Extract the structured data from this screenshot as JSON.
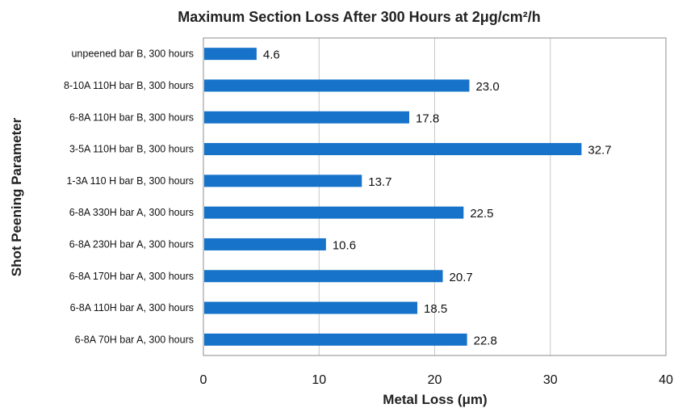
{
  "chart_data": {
    "type": "bar",
    "orientation": "horizontal",
    "title": "Maximum Section Loss After 300 Hours at 2μg/cm²/h",
    "xlabel": "Metal Loss (μm)",
    "ylabel": "Shot Peening Parameter",
    "categories": [
      "unpeened bar B, 300 hours",
      "8-10A 110H bar B, 300 hours",
      "6-8A 110H bar B, 300 hours",
      "3-5A 110H bar B, 300 hours",
      "1-3A 110 H bar B, 300 hours",
      "6-8A 330H bar A, 300 hours",
      "6-8A 230H bar A, 300 hours",
      "6-8A 170H bar A,  300 hours",
      "6-8A 110H bar A, 300 hours",
      "6-8A 70H bar A, 300 hours"
    ],
    "values": [
      4.6,
      23.0,
      17.8,
      32.7,
      13.7,
      22.5,
      10.6,
      20.7,
      18.5,
      22.8
    ],
    "value_labels": [
      "4.6",
      "23.0",
      "17.8",
      "32.7",
      "13.7",
      "22.5",
      "10.6",
      "20.7",
      "18.5",
      "22.8"
    ],
    "xlim": [
      0,
      40
    ],
    "xticks": [
      0,
      10,
      20,
      30,
      40
    ],
    "grid": "vertical",
    "bar_color": "#1673c9",
    "legend": "none"
  }
}
